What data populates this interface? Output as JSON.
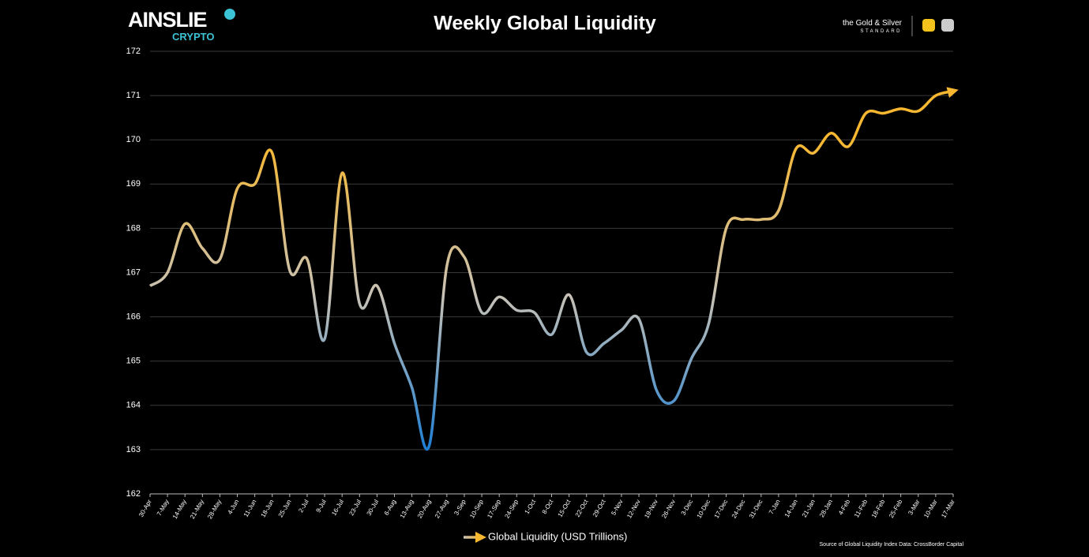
{
  "chart_data": {
    "type": "line",
    "title": "Weekly Global Liquidity",
    "categories": [
      "30-Apr",
      "7-May",
      "14-May",
      "21-May",
      "28-May",
      "4-Jun",
      "11-Jun",
      "18-Jun",
      "25-Jun",
      "2-Jul",
      "9-Jul",
      "16-Jul",
      "23-Jul",
      "30-Jul",
      "6-Aug",
      "13-Aug",
      "20-Aug",
      "27-Aug",
      "3-Sep",
      "10-Sep",
      "17-Sep",
      "24-Sep",
      "1-Oct",
      "8-Oct",
      "15-Oct",
      "22-Oct",
      "29-Oct",
      "5-Nov",
      "12-Nov",
      "19-Nov",
      "26-Nov",
      "3-Dec",
      "10-Dec",
      "17-Dec",
      "24-Dec",
      "31-Dec",
      "7-Jan",
      "14-Jan",
      "21-Jan",
      "28-Jan",
      "4-Feb",
      "11-Feb",
      "18-Feb",
      "25-Feb",
      "3-Mar",
      "10-Mar",
      "17-Mar"
    ],
    "series": [
      {
        "name": "Global Liquidity (USD Trillions)",
        "color": "#f7b731",
        "values": [
          166.7,
          167.0,
          168.1,
          167.55,
          167.3,
          168.9,
          169.0,
          169.7,
          167.05,
          167.3,
          165.5,
          169.25,
          166.3,
          166.7,
          165.4,
          164.4,
          163.1,
          167.15,
          167.35,
          166.1,
          166.45,
          166.15,
          166.1,
          165.6,
          166.5,
          165.2,
          165.4,
          165.7,
          165.95,
          164.35,
          164.1,
          165.05,
          165.85,
          168.0,
          168.2,
          168.2,
          168.4,
          169.8,
          169.7,
          170.15,
          169.85,
          170.6,
          170.6,
          170.7,
          170.65,
          171.0,
          171.1
        ]
      }
    ],
    "gradient": [
      "#1e7fd4",
      "#c8c2b6",
      "#f7b731"
    ],
    "ylim": [
      162,
      172
    ],
    "yticks": [
      162,
      163,
      164,
      165,
      166,
      167,
      168,
      169,
      170,
      171,
      172
    ],
    "grid": true,
    "legend": "bottom",
    "source": "Source of Global Liquidity Index Data: CrossBorder Capital"
  },
  "branding": {
    "left_logo": "AINSLIE",
    "left_logo_sub": "CRYPTO",
    "right_logo_top": "the Gold & Silver",
    "right_logo_bottom": "STANDARD"
  }
}
